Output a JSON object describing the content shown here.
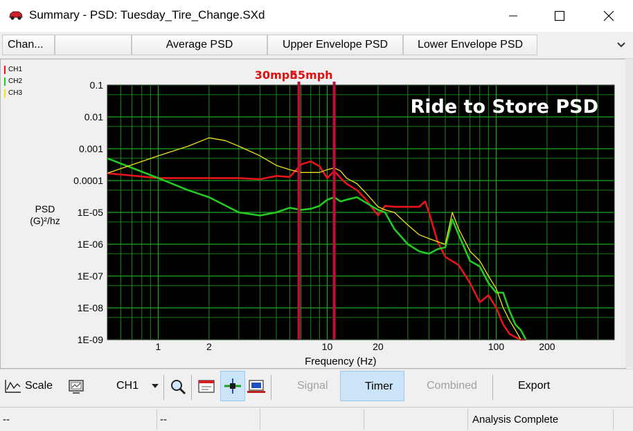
{
  "window": {
    "title": "Summary - PSD: Tuesday_Tire_Change.SXd"
  },
  "tabs": [
    {
      "label": "Chan..."
    },
    {
      "label": ""
    },
    {
      "label": "Average PSD"
    },
    {
      "label": "Upper Envelope PSD"
    },
    {
      "label": "Lower Envelope PSD"
    }
  ],
  "chart_data": {
    "type": "line",
    "title": "Ride to Store PSD",
    "xlabel": "Frequency (Hz)",
    "ylabel_line1": "PSD",
    "ylabel_line2": "(G)²/hz",
    "x_scale": "log",
    "y_scale": "log",
    "xlim": [
      0.5,
      500
    ],
    "ylim": [
      1e-09,
      0.1
    ],
    "x_ticks": [
      1,
      2,
      10,
      20,
      100,
      200
    ],
    "x_tick_labels": [
      "1",
      "2",
      "10",
      "20",
      "100",
      "200"
    ],
    "y_ticks": [
      0.1,
      0.01,
      0.001,
      0.0001,
      1e-05,
      1e-06,
      1e-07,
      1e-08,
      1e-09
    ],
    "y_tick_labels": [
      "0.1",
      "0.01",
      "0.001",
      "0.0001",
      "1E-05",
      "1E-06",
      "1E-07",
      "1E-08",
      "1E-09"
    ],
    "grid": true,
    "background": "#000000",
    "grid_color": "#1fa81f",
    "legend_position": "top-left",
    "markers": [
      {
        "label": "30mph",
        "x": 6.8,
        "color": "#c0103a"
      },
      {
        "label": "55mph",
        "x": 11,
        "color": "#c0103a"
      }
    ],
    "series": [
      {
        "name": "CH1",
        "color": "#e8141c",
        "x": [
          0.5,
          1,
          1.5,
          2,
          3,
          4,
          5,
          6,
          7,
          8,
          9,
          10,
          11,
          12,
          13,
          15,
          17,
          20,
          22,
          25,
          30,
          35,
          38,
          40,
          45,
          50,
          60,
          70,
          80,
          90,
          100,
          110,
          120,
          130,
          140,
          150
        ],
        "y": [
          0.00017,
          0.00012,
          0.00012,
          0.00012,
          0.00012,
          0.00011,
          0.00014,
          0.00013,
          0.00032,
          0.0004,
          0.00028,
          0.00012,
          0.0002,
          0.00012,
          8e-05,
          5e-05,
          2.5e-05,
          8e-06,
          1.6e-05,
          1.5e-05,
          1.5e-05,
          1.5e-05,
          2.2e-05,
          1e-05,
          1.2e-06,
          4e-07,
          2.2e-07,
          6e-08,
          1.5e-08,
          2.5e-08,
          1e-08,
          3e-09,
          1.5e-09,
          1.2e-09,
          1e-09,
          1e-09
        ]
      },
      {
        "name": "CH2",
        "color": "#22cc22",
        "x": [
          0.5,
          1,
          1.5,
          2,
          3,
          4,
          5,
          6,
          7,
          8,
          9,
          10,
          11,
          12,
          13,
          15,
          17,
          20,
          22,
          25,
          30,
          35,
          40,
          45,
          50,
          55,
          60,
          70,
          80,
          90,
          100,
          110,
          120,
          130,
          140,
          150
        ],
        "y": [
          0.0005,
          0.00012,
          5e-05,
          3e-05,
          1e-05,
          8e-06,
          1e-05,
          1.4e-05,
          1.2e-05,
          1.3e-05,
          1.6e-05,
          2.5e-05,
          3e-05,
          2.2e-05,
          2.5e-05,
          3e-05,
          2e-05,
          1.2e-05,
          1e-05,
          3e-06,
          1e-06,
          6e-07,
          5e-07,
          7e-07,
          8e-07,
          6e-06,
          2e-06,
          3e-07,
          2e-07,
          6e-08,
          3e-08,
          3e-08,
          8e-09,
          3e-09,
          2e-09,
          1e-09
        ]
      },
      {
        "name": "CH3",
        "color": "#f2e21c",
        "x": [
          0.5,
          1,
          1.5,
          2,
          2.5,
          3,
          4,
          5,
          6,
          7,
          8,
          9,
          10,
          11,
          12,
          13,
          15,
          17,
          20,
          22,
          25,
          30,
          35,
          40,
          45,
          50,
          55,
          60,
          70,
          80,
          90,
          100,
          110,
          120,
          130,
          140
        ],
        "y": [
          0.00017,
          0.0006,
          0.0012,
          0.0022,
          0.0018,
          0.0012,
          0.0006,
          0.0003,
          0.00022,
          0.00018,
          0.00018,
          0.00018,
          0.00022,
          0.00025,
          0.0002,
          0.00012,
          8e-05,
          4e-05,
          1.5e-05,
          1.2e-05,
          1e-05,
          4e-06,
          2e-06,
          1.5e-06,
          1.2e-06,
          1e-06,
          1e-05,
          3e-06,
          6e-07,
          3e-07,
          1e-07,
          4e-08,
          1e-08,
          4e-09,
          2e-09,
          1e-09
        ]
      }
    ]
  },
  "toolbar": {
    "scale_label": "Scale",
    "channel_select": "CH1",
    "signal_label": "Signal",
    "timer_label": "Timer",
    "combined_label": "Combined",
    "export_label": "Export"
  },
  "status": {
    "cell1": "--",
    "cell2": "--",
    "cell3": "",
    "cell4": "",
    "cell5": "Analysis Complete"
  }
}
